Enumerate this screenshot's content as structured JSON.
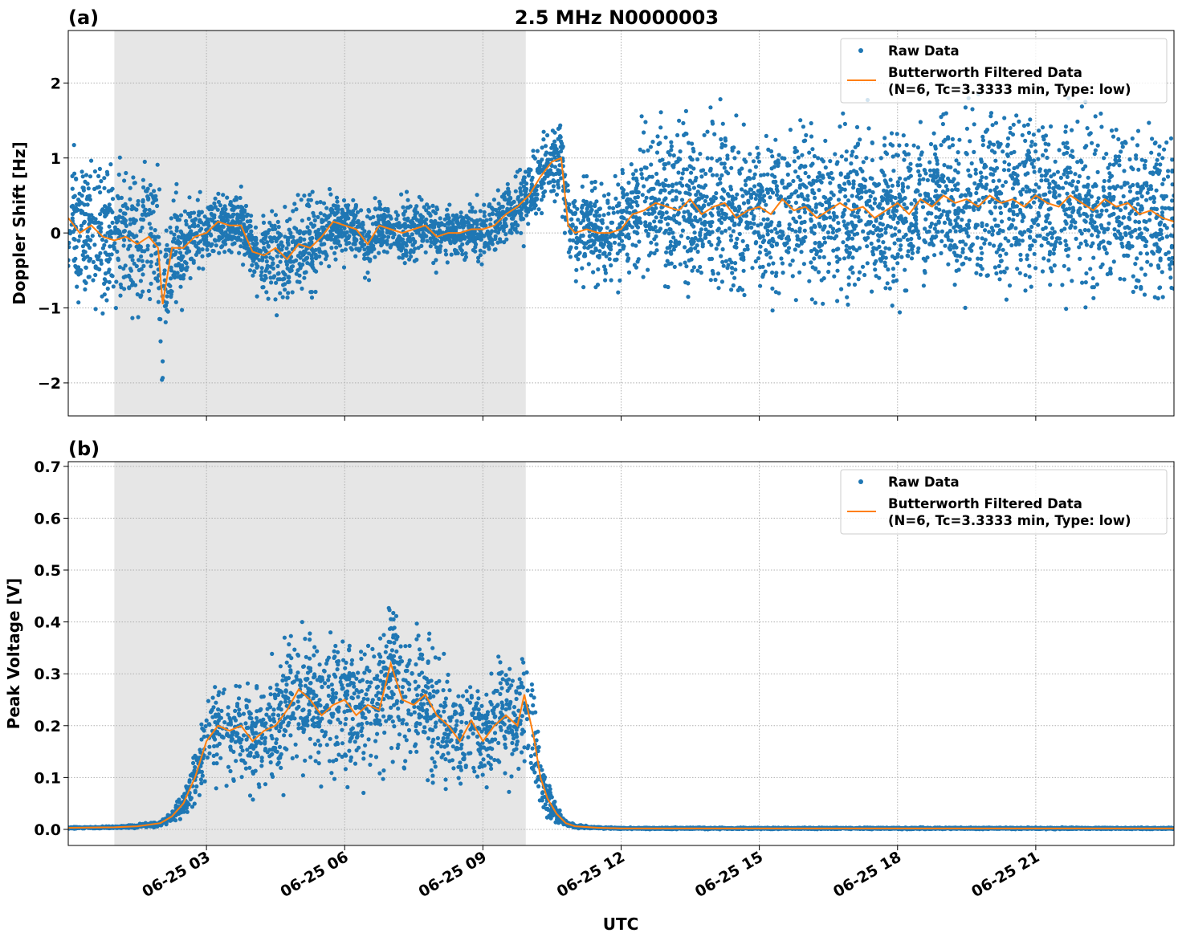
{
  "chart_data": [
    {
      "type": "scatter",
      "panel_label": "(a)",
      "title": "2.5 MHz N0000003",
      "xlabel": "",
      "ylabel": "Doppler Shift [Hz]",
      "xlim_hours": [
        0,
        24
      ],
      "ylim": [
        -2.44,
        2.7
      ],
      "yticks": [
        -2,
        -1,
        0,
        1,
        2
      ],
      "ytick_labels": [
        "−2",
        "−1",
        "0",
        "1",
        "2"
      ],
      "grid": true,
      "shaded_region_hours": [
        1.0,
        9.93
      ],
      "legend": {
        "placement": "top-right",
        "entries": [
          "Raw Data",
          "Butterworth Filtered Data",
          "(N=6, Tc=3.3333 min, Type: low)"
        ]
      },
      "series": [
        {
          "name": "Butterworth Filtered Data",
          "kind": "line",
          "color": "#ff7f0e",
          "x": [
            0,
            0.25,
            0.5,
            0.75,
            1,
            1.25,
            1.5,
            1.75,
            1.95,
            2.05,
            2.25,
            2.5,
            2.75,
            3,
            3.25,
            3.5,
            3.75,
            4,
            4.25,
            4.5,
            4.75,
            5,
            5.25,
            5.5,
            5.75,
            6,
            6.25,
            6.5,
            6.75,
            7,
            7.25,
            7.5,
            7.75,
            8,
            8.25,
            8.5,
            8.75,
            9,
            9.25,
            9.5,
            9.75,
            10,
            10.25,
            10.5,
            10.7,
            10.85,
            11,
            11.25,
            11.5,
            11.75,
            12,
            12.25,
            12.5,
            12.75,
            13,
            13.25,
            13.5,
            13.75,
            14,
            14.25,
            14.5,
            14.75,
            15,
            15.25,
            15.5,
            15.75,
            16,
            16.25,
            16.5,
            16.75,
            17,
            17.25,
            17.5,
            17.75,
            18,
            18.25,
            18.5,
            18.75,
            19,
            19.25,
            19.5,
            19.75,
            20,
            20.25,
            20.5,
            20.75,
            21,
            21.25,
            21.5,
            21.75,
            22,
            22.25,
            22.5,
            22.75,
            23,
            23.25,
            23.5,
            23.75,
            24
          ],
          "y": [
            0.2,
            0.0,
            0.1,
            -0.05,
            -0.1,
            -0.05,
            -0.15,
            -0.05,
            -0.2,
            -0.95,
            -0.2,
            -0.2,
            -0.05,
            0.0,
            0.15,
            0.1,
            0.1,
            -0.25,
            -0.3,
            -0.2,
            -0.35,
            -0.15,
            -0.2,
            -0.05,
            0.15,
            0.1,
            0.05,
            -0.15,
            0.1,
            0.05,
            0.0,
            0.05,
            0.1,
            -0.05,
            0.0,
            0.0,
            0.05,
            0.05,
            0.1,
            0.25,
            0.35,
            0.5,
            0.75,
            0.95,
            1.0,
            0.1,
            0.0,
            0.05,
            0.0,
            0.0,
            0.05,
            0.25,
            0.3,
            0.4,
            0.35,
            0.3,
            0.45,
            0.25,
            0.35,
            0.4,
            0.2,
            0.3,
            0.35,
            0.25,
            0.45,
            0.3,
            0.35,
            0.2,
            0.3,
            0.4,
            0.3,
            0.35,
            0.2,
            0.3,
            0.4,
            0.25,
            0.45,
            0.35,
            0.5,
            0.4,
            0.45,
            0.35,
            0.5,
            0.4,
            0.45,
            0.35,
            0.5,
            0.4,
            0.35,
            0.5,
            0.4,
            0.3,
            0.45,
            0.35,
            0.4,
            0.25,
            0.3,
            0.2,
            0.15
          ]
        },
        {
          "name": "Raw Data",
          "kind": "scatter",
          "color": "#1f77b4",
          "spread_x": [
            0,
            1,
            2,
            2.5,
            3,
            4,
            4.5,
            5.5,
            6,
            9,
            9.5,
            10.7,
            11,
            12,
            12.5,
            24
          ],
          "spread_halfwidth": [
            0.85,
            0.8,
            0.9,
            0.5,
            0.35,
            0.35,
            0.55,
            0.45,
            0.35,
            0.3,
            0.35,
            0.45,
            0.45,
            0.6,
            0.9,
            0.95
          ]
        }
      ]
    },
    {
      "type": "scatter",
      "panel_label": "(b)",
      "xlabel": "UTC",
      "ylabel": "Peak Voltage [V]",
      "xlim_hours": [
        0,
        24
      ],
      "ylim": [
        -0.031,
        0.709
      ],
      "yticks": [
        0.0,
        0.1,
        0.2,
        0.3,
        0.4,
        0.5,
        0.6,
        0.7
      ],
      "ytick_labels": [
        "0.0",
        "0.1",
        "0.2",
        "0.3",
        "0.4",
        "0.5",
        "0.6",
        "0.7"
      ],
      "xticks_hours": [
        3,
        6,
        9,
        12,
        15,
        18,
        21
      ],
      "xtick_labels": [
        "06-25 03",
        "06-25 06",
        "06-25 09",
        "06-25 12",
        "06-25 15",
        "06-25 18",
        "06-25 21"
      ],
      "grid": true,
      "shaded_region_hours": [
        1.0,
        9.93
      ],
      "legend": {
        "placement": "top-right",
        "entries": [
          "Raw Data",
          "Butterworth Filtered Data",
          "(N=6, Tc=3.3333 min, Type: low)"
        ]
      },
      "series": [
        {
          "name": "Butterworth Filtered Data",
          "kind": "line",
          "color": "#ff7f0e",
          "x": [
            0,
            1,
            1.5,
            2,
            2.25,
            2.5,
            2.75,
            3,
            3.25,
            3.5,
            3.75,
            4,
            4.25,
            4.5,
            4.75,
            5,
            5.25,
            5.5,
            5.75,
            6,
            6.25,
            6.5,
            6.75,
            7,
            7.25,
            7.5,
            7.75,
            8,
            8.25,
            8.5,
            8.75,
            9,
            9.25,
            9.5,
            9.75,
            9.9,
            10.1,
            10.25,
            10.4,
            10.6,
            10.8,
            11,
            11.5,
            12,
            24
          ],
          "y": [
            0.003,
            0.004,
            0.006,
            0.012,
            0.025,
            0.05,
            0.1,
            0.17,
            0.2,
            0.19,
            0.2,
            0.17,
            0.19,
            0.2,
            0.23,
            0.27,
            0.25,
            0.22,
            0.24,
            0.25,
            0.22,
            0.24,
            0.23,
            0.32,
            0.25,
            0.24,
            0.26,
            0.22,
            0.2,
            0.17,
            0.21,
            0.17,
            0.2,
            0.22,
            0.2,
            0.26,
            0.18,
            0.1,
            0.06,
            0.03,
            0.012,
            0.006,
            0.003,
            0.002,
            0.002
          ]
        },
        {
          "name": "Raw Data",
          "kind": "scatter",
          "color": "#1f77b4",
          "spread_relative": 0.55
        }
      ]
    }
  ]
}
